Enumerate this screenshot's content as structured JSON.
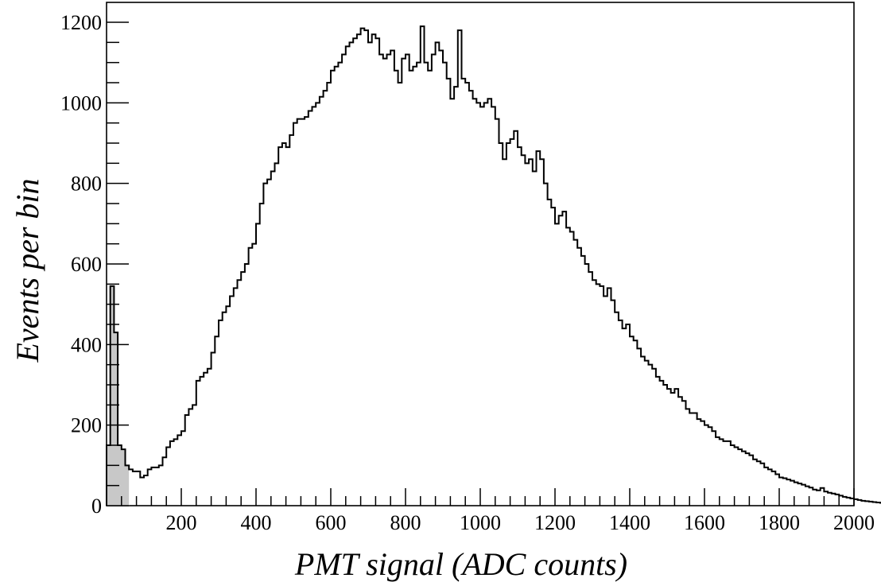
{
  "chart_data": {
    "type": "histogram",
    "title": "",
    "xlabel": "PMT signal (ADC counts)",
    "ylabel": "Events per bin",
    "xlim": [
      0,
      2000
    ],
    "ylim": [
      0,
      1200
    ],
    "grid": false,
    "bin_width": 10,
    "x_tick_labels": [
      "200",
      "400",
      "600",
      "800",
      "1000",
      "1200",
      "1400",
      "1600",
      "1800",
      "2000"
    ],
    "y_tick_labels": [
      "0",
      "200",
      "400",
      "600",
      "800",
      "1000",
      "1200"
    ],
    "colors": {
      "line": "#000000",
      "pedestal_fill": "#c8c8c8"
    },
    "series": [
      {
        "values": [
          150,
          545,
          430,
          150,
          140,
          100,
          90,
          85,
          85,
          70,
          75,
          90,
          95,
          95,
          100,
          120,
          145,
          160,
          165,
          175,
          185,
          225,
          240,
          250,
          310,
          320,
          330,
          340,
          380,
          420,
          460,
          480,
          495,
          520,
          540,
          560,
          580,
          600,
          640,
          650,
          700,
          750,
          800,
          810,
          830,
          850,
          890,
          900,
          890,
          920,
          950,
          960,
          960,
          965,
          980,
          990,
          1000,
          1015,
          1030,
          1050,
          1080,
          1090,
          1100,
          1120,
          1140,
          1150,
          1160,
          1170,
          1185,
          1180,
          1150,
          1170,
          1160,
          1120,
          1110,
          1120,
          1130,
          1080,
          1050,
          1110,
          1120,
          1080,
          1090,
          1100,
          1190,
          1100,
          1080,
          1120,
          1150,
          1130,
          1100,
          1060,
          1010,
          1040,
          1180,
          1060,
          1050,
          1030,
          1010,
          1000,
          990,
          1000,
          1010,
          990,
          960,
          900,
          860,
          900,
          910,
          930,
          890,
          870,
          850,
          860,
          830,
          880,
          860,
          800,
          760,
          740,
          700,
          720,
          730,
          690,
          680,
          660,
          640,
          620,
          600,
          580,
          560,
          550,
          545,
          520,
          540,
          510,
          480,
          460,
          440,
          450,
          420,
          410,
          390,
          370,
          360,
          350,
          340,
          320,
          310,
          300,
          290,
          280,
          290,
          270,
          260,
          240,
          230,
          230,
          215,
          210,
          200,
          195,
          185,
          170,
          165,
          160,
          160,
          150,
          145,
          140,
          135,
          130,
          125,
          115,
          110,
          105,
          95,
          90,
          85,
          78,
          70,
          68,
          65,
          62,
          58,
          55,
          52,
          48,
          45,
          40,
          38,
          44,
          35,
          32,
          30,
          28,
          25,
          22,
          20,
          18,
          16,
          14,
          12,
          11,
          10,
          9,
          8,
          7,
          6,
          5
        ]
      }
    ]
  }
}
